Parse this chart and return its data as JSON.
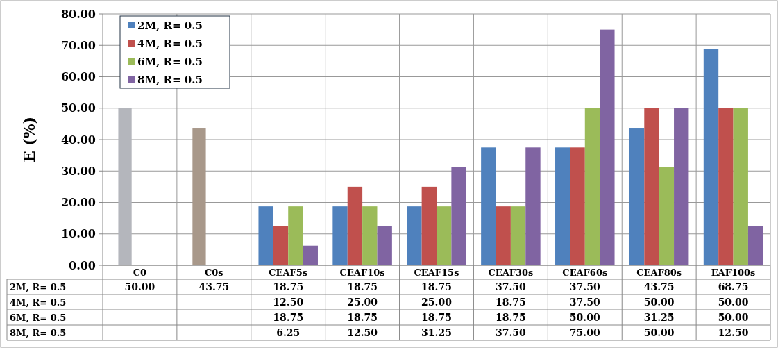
{
  "chart_data": {
    "type": "bar",
    "ylabel": "E (%)",
    "categories": [
      "C0",
      "C0s",
      "CEAF5s",
      "CEAF10s",
      "CEAF15s",
      "CEAF30s",
      "CEAF60s",
      "CEAF80s",
      "EAF100s"
    ],
    "series": [
      {
        "name": "2M, R= 0.5",
        "color": "#4f81bd",
        "colors": [
          "#b4b6bc",
          "#a8988a",
          "#4f81bd",
          "#4f81bd",
          "#4f81bd",
          "#4f81bd",
          "#4f81bd",
          "#4f81bd",
          "#4f81bd"
        ],
        "values": [
          50,
          43.75,
          18.75,
          18.75,
          18.75,
          37.5,
          37.5,
          43.75,
          68.75
        ],
        "value_labels": [
          "50.00",
          "43.75",
          "18.75",
          "18.75",
          "18.75",
          "37.50",
          "37.50",
          "43.75",
          "68.75"
        ]
      },
      {
        "name": "4M, R= 0.5",
        "color": "#c0504d",
        "values": [
          null,
          null,
          12.5,
          25,
          25,
          18.75,
          37.5,
          50,
          50
        ],
        "value_labels": [
          null,
          null,
          "12.50",
          "25.00",
          "25.00",
          "18.75",
          "37.50",
          "50.00",
          "50.00"
        ]
      },
      {
        "name": "6M, R= 0.5",
        "color": "#9bbb59",
        "values": [
          null,
          null,
          18.75,
          18.75,
          18.75,
          18.75,
          50,
          31.25,
          50
        ],
        "value_labels": [
          null,
          null,
          "18.75",
          "18.75",
          "18.75",
          "18.75",
          "50.00",
          "31.25",
          "50.00"
        ]
      },
      {
        "name": "8M, R= 0.5",
        "color": "#8064a2",
        "values": [
          null,
          null,
          6.25,
          12.5,
          31.25,
          37.5,
          75,
          50,
          12.5
        ],
        "value_labels": [
          null,
          null,
          "6.25",
          "12.50",
          "31.25",
          "37.50",
          "75.00",
          "50.00",
          "12.50"
        ]
      }
    ],
    "ylim": [
      0,
      80
    ],
    "yticks": [
      {
        "value": 0,
        "label": "0.00"
      },
      {
        "value": 10,
        "label": "10.00"
      },
      {
        "value": 20,
        "label": "20.00"
      },
      {
        "value": 30,
        "label": "30.00"
      },
      {
        "value": 40,
        "label": "40.00"
      },
      {
        "value": 50,
        "label": "50.00"
      },
      {
        "value": 60,
        "label": "60.00"
      },
      {
        "value": 70,
        "label": "70.00"
      },
      {
        "value": 80,
        "label": "80.00"
      }
    ],
    "grid": true,
    "legend": "top left"
  }
}
